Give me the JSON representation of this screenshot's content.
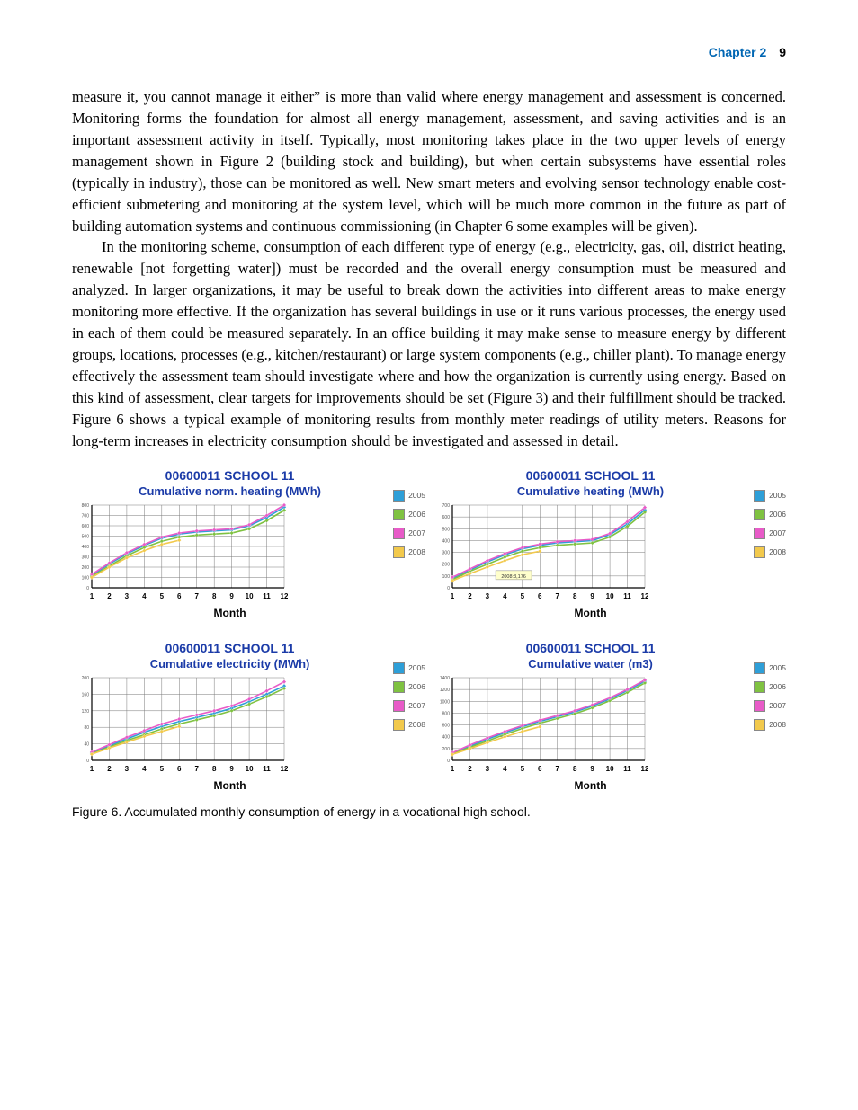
{
  "header": {
    "chapter": "Chapter 2",
    "page": "9"
  },
  "paragraphs": {
    "p1": "measure it, you cannot manage it either” is more than valid where energy management and assessment is concerned. Monitoring forms the foundation for almost all energy management, assessment, and saving activities and is an important assessment activity in itself. Typically, most monitoring takes place in the two upper levels of energy management shown in Figure 2 (building stock and building), but when certain subsystems have essential roles (typically in industry), those can be monitored as well. New smart meters and evolving sensor technology enable cost-efficient submetering and monitoring at the system level, which will be much more common in the future as part of building automation systems and continuous commissioning (in Chapter 6 some examples will be given).",
    "p2": "In the monitoring scheme, consumption of each different type of energy (e.g., electricity, gas, oil, district heating, renewable [not forgetting water]) must be recorded and the overall energy consumption must be measured and analyzed. In larger organizations, it may be useful to break down the activities into different areas to make energy monitoring more effective. If the organization has several buildings in use or it runs various processes, the energy used in each of them could be measured separately. In an office building it may make sense to measure energy by different groups, locations, processes (e.g., kitchen/restaurant) or large system components (e.g., chiller plant). To manage energy effectively the assessment team should investigate where and how the organization is currently using energy. Based on this kind of assessment, clear targets for improvements should be set (Figure 3) and their fulfillment should be tracked. Figure 6 shows a typical example of monitoring results from monthly meter readings of utility meters. Reasons for long-term increases in electricity consumption should be investigated and assessed in detail."
  },
  "figure": {
    "caption": "Figure 6. Accumulated monthly consumption of energy in a vocational high school.",
    "legend_years": [
      "2005",
      "2006",
      "2007",
      "2008"
    ],
    "legend_colors": [
      "#2e9fd8",
      "#7fc241",
      "#e85bc8",
      "#f2c94c"
    ],
    "xlabel": "Month",
    "x_ticks": [
      "1",
      "2",
      "3",
      "4",
      "5",
      "6",
      "7",
      "8",
      "9",
      "10",
      "11",
      "12"
    ],
    "title_common": "00600011 SCHOOL 11",
    "charts": {
      "a": {
        "subtitle": "Cumulative norm. heating (MWh)",
        "ymax": 800,
        "ytick": 100,
        "series": {
          "2005": [
            120,
            230,
            330,
            410,
            480,
            520,
            540,
            550,
            560,
            600,
            680,
            780
          ],
          "2006": [
            110,
            210,
            310,
            390,
            450,
            490,
            510,
            520,
            530,
            570,
            650,
            750
          ],
          "2007": [
            130,
            240,
            340,
            420,
            490,
            530,
            550,
            560,
            570,
            610,
            700,
            800
          ],
          "2008": [
            100,
            200,
            290,
            360,
            420,
            460
          ]
        }
      },
      "b": {
        "subtitle": "Cumulative heating (MWh)",
        "ymax": 700,
        "ytick": 100,
        "annotation": "2008:3,176",
        "series": {
          "2005": [
            80,
            150,
            220,
            280,
            330,
            360,
            380,
            390,
            400,
            450,
            540,
            660
          ],
          "2006": [
            70,
            140,
            200,
            260,
            310,
            340,
            360,
            370,
            380,
            430,
            520,
            640
          ],
          "2007": [
            90,
            160,
            230,
            290,
            340,
            370,
            390,
            400,
            410,
            460,
            560,
            680
          ],
          "2008": [
            60,
            120,
            176,
            230,
            280,
            310
          ]
        }
      },
      "c": {
        "subtitle": "Cumulative electricity (MWh)",
        "ymax": 200,
        "ytick": 40,
        "series": {
          "2005": [
            18,
            35,
            52,
            68,
            82,
            94,
            104,
            114,
            126,
            142,
            160,
            180
          ],
          "2006": [
            16,
            32,
            48,
            62,
            76,
            88,
            98,
            108,
            120,
            136,
            154,
            174
          ],
          "2007": [
            20,
            38,
            56,
            72,
            88,
            100,
            110,
            120,
            132,
            148,
            168,
            190
          ],
          "2008": [
            15,
            30,
            44,
            58,
            70,
            82
          ]
        }
      },
      "d": {
        "subtitle": "Cumulative water (m3)",
        "ymax": 1400,
        "ytick": 200,
        "series": {
          "2005": [
            120,
            240,
            360,
            470,
            570,
            660,
            740,
            820,
            920,
            1040,
            1180,
            1340
          ],
          "2006": [
            110,
            220,
            330,
            440,
            540,
            630,
            710,
            790,
            890,
            1010,
            1150,
            1310
          ],
          "2007": [
            130,
            260,
            380,
            490,
            590,
            680,
            760,
            840,
            940,
            1060,
            1200,
            1360
          ],
          "2008": [
            100,
            200,
            300,
            400,
            490,
            570
          ]
        }
      }
    }
  },
  "style": {
    "axis_color": "#000000",
    "grid_color": "#7a7a7a",
    "title_color": "#1b3ba8",
    "marker": "diamond",
    "line_width": 1.6,
    "plot_bg": "#ffffff"
  }
}
